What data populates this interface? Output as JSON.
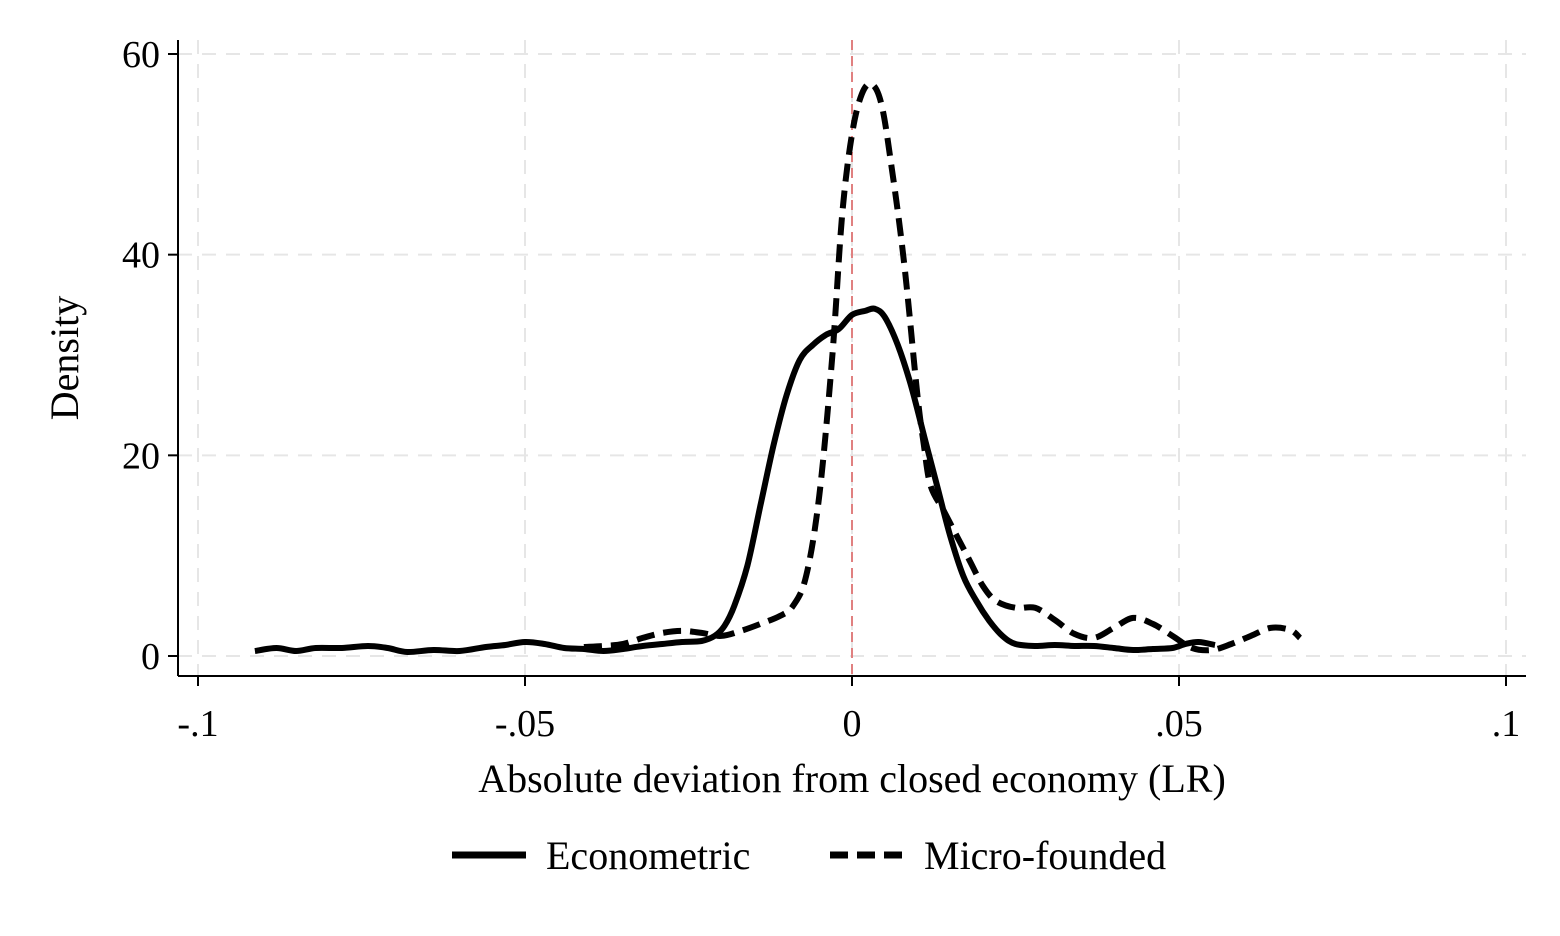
{
  "chart_data": {
    "type": "line",
    "xlabel": "Absolute deviation from closed economy (LR)",
    "ylabel": "Density",
    "xlim": [
      -0.1,
      0.1
    ],
    "ylim": [
      0,
      60
    ],
    "x_ticks": [
      -0.1,
      -0.05,
      0,
      0.05,
      0.1
    ],
    "x_tick_labels": [
      "-.1",
      "-.05",
      "0",
      ".05",
      ".1"
    ],
    "y_ticks": [
      0,
      20,
      40,
      60
    ],
    "y_tick_labels": [
      "0",
      "20",
      "40",
      "60"
    ],
    "grid": true,
    "legend": "bottom",
    "reference_line": {
      "x": 0,
      "color": "#e08080"
    },
    "series": [
      {
        "name": "Econometric",
        "style": "solid",
        "color": "#000000",
        "points": [
          [
            -0.0913,
            0.5
          ],
          [
            -0.088,
            0.8
          ],
          [
            -0.085,
            0.5
          ],
          [
            -0.082,
            0.8
          ],
          [
            -0.078,
            0.8
          ],
          [
            -0.074,
            1.0
          ],
          [
            -0.071,
            0.8
          ],
          [
            -0.068,
            0.4
          ],
          [
            -0.064,
            0.6
          ],
          [
            -0.06,
            0.5
          ],
          [
            -0.056,
            0.9
          ],
          [
            -0.053,
            1.1
          ],
          [
            -0.05,
            1.4
          ],
          [
            -0.047,
            1.2
          ],
          [
            -0.044,
            0.8
          ],
          [
            -0.041,
            0.7
          ],
          [
            -0.038,
            0.5
          ],
          [
            -0.035,
            0.7
          ],
          [
            -0.032,
            1.0
          ],
          [
            -0.029,
            1.2
          ],
          [
            -0.026,
            1.4
          ],
          [
            -0.023,
            1.5
          ],
          [
            -0.021,
            2.0
          ],
          [
            -0.0195,
            3.0
          ],
          [
            -0.018,
            5.0
          ],
          [
            -0.016,
            9.0
          ],
          [
            -0.014,
            15.0
          ],
          [
            -0.012,
            21.0
          ],
          [
            -0.01,
            26.0
          ],
          [
            -0.008,
            29.5
          ],
          [
            -0.006,
            31.0
          ],
          [
            -0.004,
            32.0
          ],
          [
            -0.002,
            32.6
          ],
          [
            0.0,
            34.0
          ],
          [
            0.002,
            34.4
          ],
          [
            0.0035,
            34.6
          ],
          [
            0.005,
            33.8
          ],
          [
            0.007,
            31.0
          ],
          [
            0.009,
            27.0
          ],
          [
            0.011,
            22.0
          ],
          [
            0.013,
            17.0
          ],
          [
            0.015,
            12.0
          ],
          [
            0.017,
            8.0
          ],
          [
            0.019,
            5.5
          ],
          [
            0.021,
            3.5
          ],
          [
            0.023,
            2.0
          ],
          [
            0.025,
            1.2
          ],
          [
            0.028,
            1.0
          ],
          [
            0.031,
            1.1
          ],
          [
            0.034,
            1.0
          ],
          [
            0.037,
            1.0
          ],
          [
            0.04,
            0.8
          ],
          [
            0.043,
            0.6
          ],
          [
            0.046,
            0.7
          ],
          [
            0.049,
            0.8
          ],
          [
            0.051,
            1.2
          ],
          [
            0.053,
            1.4
          ],
          [
            0.0555,
            1.1
          ]
        ]
      },
      {
        "name": "Micro-founded",
        "style": "dashed",
        "color": "#000000",
        "points": [
          [
            -0.041,
            0.9
          ],
          [
            -0.038,
            1.0
          ],
          [
            -0.035,
            1.2
          ],
          [
            -0.032,
            1.8
          ],
          [
            -0.029,
            2.3
          ],
          [
            -0.026,
            2.5
          ],
          [
            -0.023,
            2.3
          ],
          [
            -0.02,
            2.0
          ],
          [
            -0.017,
            2.5
          ],
          [
            -0.014,
            3.2
          ],
          [
            -0.011,
            4.0
          ],
          [
            -0.009,
            5.0
          ],
          [
            -0.007,
            8.0
          ],
          [
            -0.005,
            16.0
          ],
          [
            -0.003,
            30.0
          ],
          [
            -0.0015,
            44.0
          ],
          [
            0.0,
            52.0
          ],
          [
            0.0015,
            56.0
          ],
          [
            0.003,
            57.0
          ],
          [
            0.0045,
            55.0
          ],
          [
            0.006,
            49.0
          ],
          [
            0.008,
            39.0
          ],
          [
            0.01,
            26.0
          ],
          [
            0.011,
            21.0
          ],
          [
            0.012,
            17.0
          ],
          [
            0.014,
            14.5
          ],
          [
            0.016,
            12.0
          ],
          [
            0.018,
            9.5
          ],
          [
            0.02,
            7.0
          ],
          [
            0.022,
            5.5
          ],
          [
            0.025,
            4.8
          ],
          [
            0.028,
            4.8
          ],
          [
            0.031,
            3.6
          ],
          [
            0.034,
            2.2
          ],
          [
            0.037,
            1.8
          ],
          [
            0.04,
            2.8
          ],
          [
            0.043,
            3.8
          ],
          [
            0.046,
            3.2
          ],
          [
            0.049,
            2.0
          ],
          [
            0.052,
            0.8
          ],
          [
            0.055,
            0.6
          ],
          [
            0.058,
            1.2
          ],
          [
            0.061,
            2.0
          ],
          [
            0.064,
            2.8
          ],
          [
            0.067,
            2.6
          ],
          [
            0.0685,
            1.8
          ]
        ]
      }
    ]
  }
}
